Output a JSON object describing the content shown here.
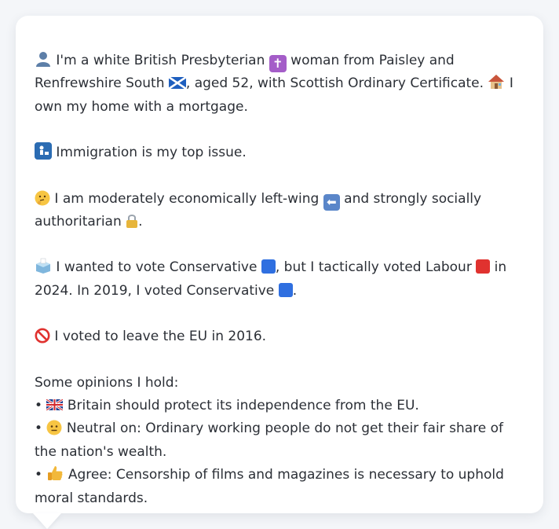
{
  "profile": {
    "intro_1": " I'm a white British Presbyterian ",
    "intro_2": " woman from Paisley and Renfrewshire South ",
    "intro_3": ", aged 52, with Scottish Ordinary Certificate. ",
    "intro_4": " I own my home with a mortgage.",
    "top_issue": " Immigration is my top issue.",
    "ideology_1": " I am moderately economically left-wing ",
    "ideology_2": " and strongly socially authoritarian ",
    "ideology_3": ".",
    "vote_1": " I wanted to vote Conservative ",
    "vote_2": ", but I tactically voted Labour ",
    "vote_3": " in 2024. In 2019, I voted Conservative ",
    "vote_4": ".",
    "eu_vote": " I voted to leave the EU in 2016.",
    "opinions_heading": "Some opinions I hold:",
    "bullet": "•",
    "opinions": [
      {
        "text": " Britain should protect its independence from the EU."
      },
      {
        "text": " Neutral on: Ordinary working people do not get their fair share of the nation's wealth."
      },
      {
        "text": " Agree: Censorship of films and magazines is necessary to uphold moral standards."
      }
    ],
    "icons": {
      "person": "person-icon",
      "cross": "latin-cross-icon",
      "cross_glyph": "✝",
      "scotland_flag": "scotland-flag-icon",
      "house": "house-icon",
      "passport": "passport-control-icon",
      "thinking": "thinking-face-icon",
      "left_arrow": "left-arrow-icon",
      "left_arrow_glyph": "⬅",
      "lock": "lock-icon",
      "ballot": "ballot-box-icon",
      "stop": "no-entry-icon",
      "uk_flag": "uk-flag-icon",
      "neutral_face": "neutral-face-icon",
      "thumbs_up": "thumbs-up-icon"
    },
    "colors": {
      "conservative": "#2f6fe0",
      "labour": "#e0322f"
    }
  }
}
